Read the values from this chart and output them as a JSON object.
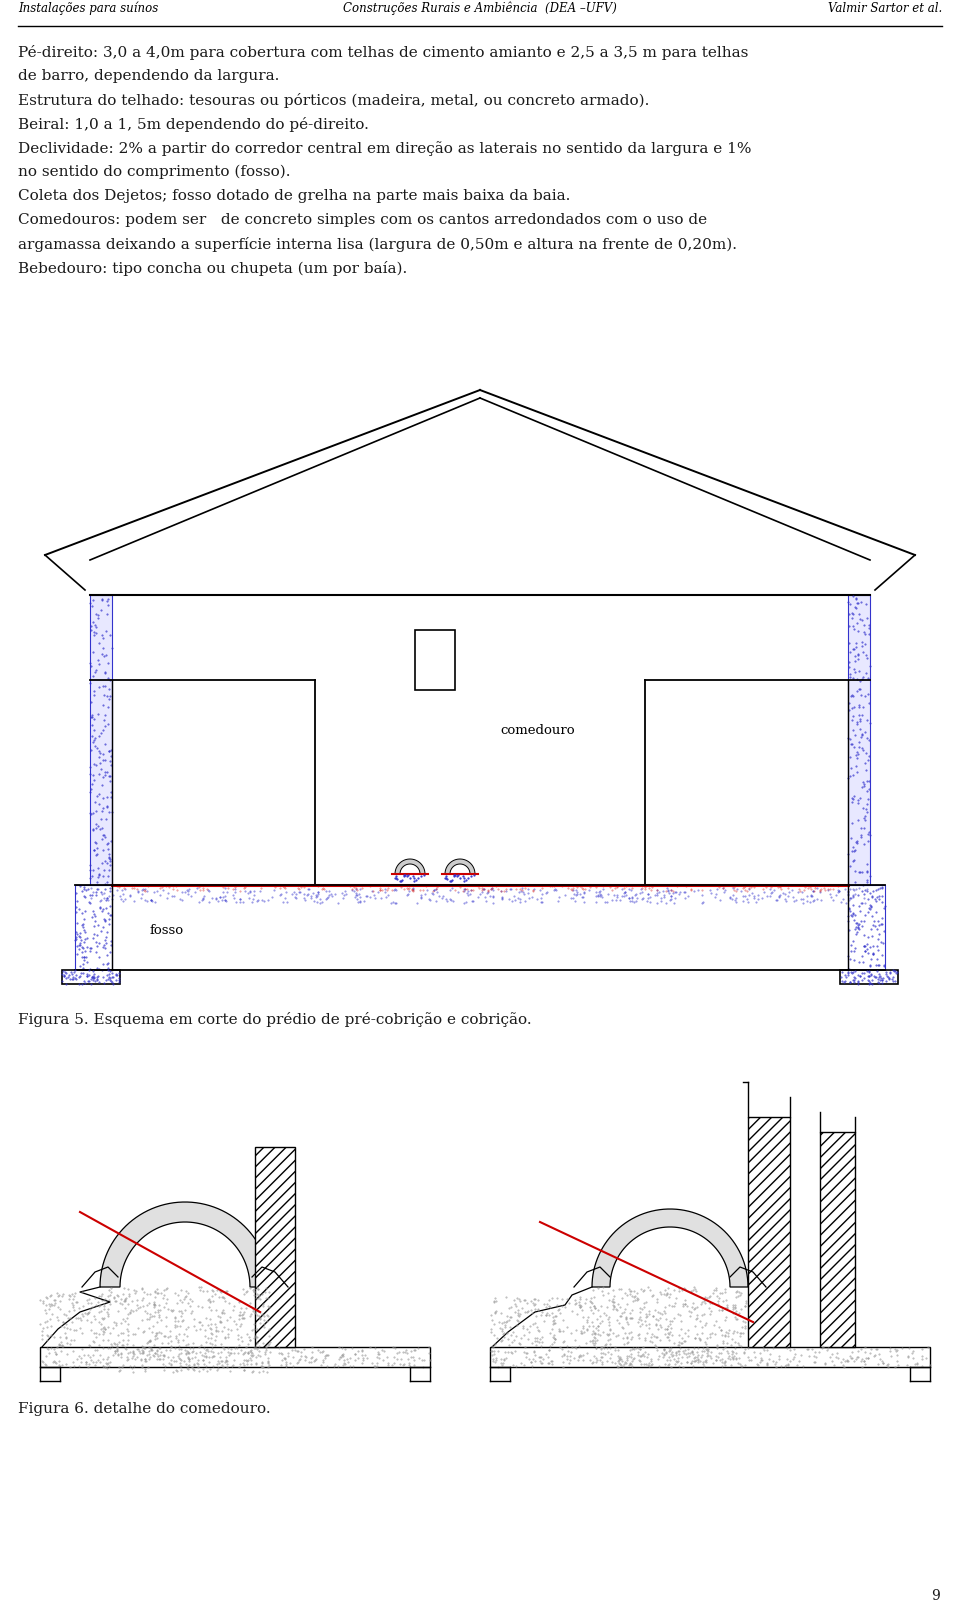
{
  "bg_color": "#ffffff",
  "header_left": "Instalações para suínos",
  "header_center": "Construções Rurais e Ambiência  (DEA –UFV)",
  "header_right": "Valmir Sartor et al.",
  "body_lines": [
    "Pé-direito: 3,0 a 4,0m para cobertura com telhas de cimento amianto e 2,5 a 3,5 m para telhas",
    "de barro, dependendo da largura.",
    "Estrutura do telhado: tesouras ou pórticos (madeira, metal, ou concreto armado).",
    "Beiral: 1,0 a 1, 5m dependendo do pé-direito.",
    "Declividade: 2% a partir do corredor central em direção as laterais no sentido da largura e 1%",
    "no sentido do comprimento (fosso).",
    "Coleta dos Dejetos; fosso dotado de grelha na parte mais baixa da baia.",
    "Comedouros: podem ser   de concreto simples com os cantos arredondados com o uso de",
    "argamassa deixando a superfície interna lisa (largura de 0,50m e altura na frente de 0,20m).",
    "Bebedouro: tipo concha ou chupeta (um por baía)."
  ],
  "fig5_caption": "Figura 5. Esquema em corte do prédio de pré-cobrição e cobrição.",
  "fig6_caption": "Figura 6. detalhe do comedouro.",
  "page_number": "9",
  "line_color": "#000000",
  "red_color": "#cc0000",
  "blue_color": "#3333cc",
  "text_color": "#1a1a1a",
  "label_comedouro": "comedouro",
  "label_fosso": "fosso"
}
